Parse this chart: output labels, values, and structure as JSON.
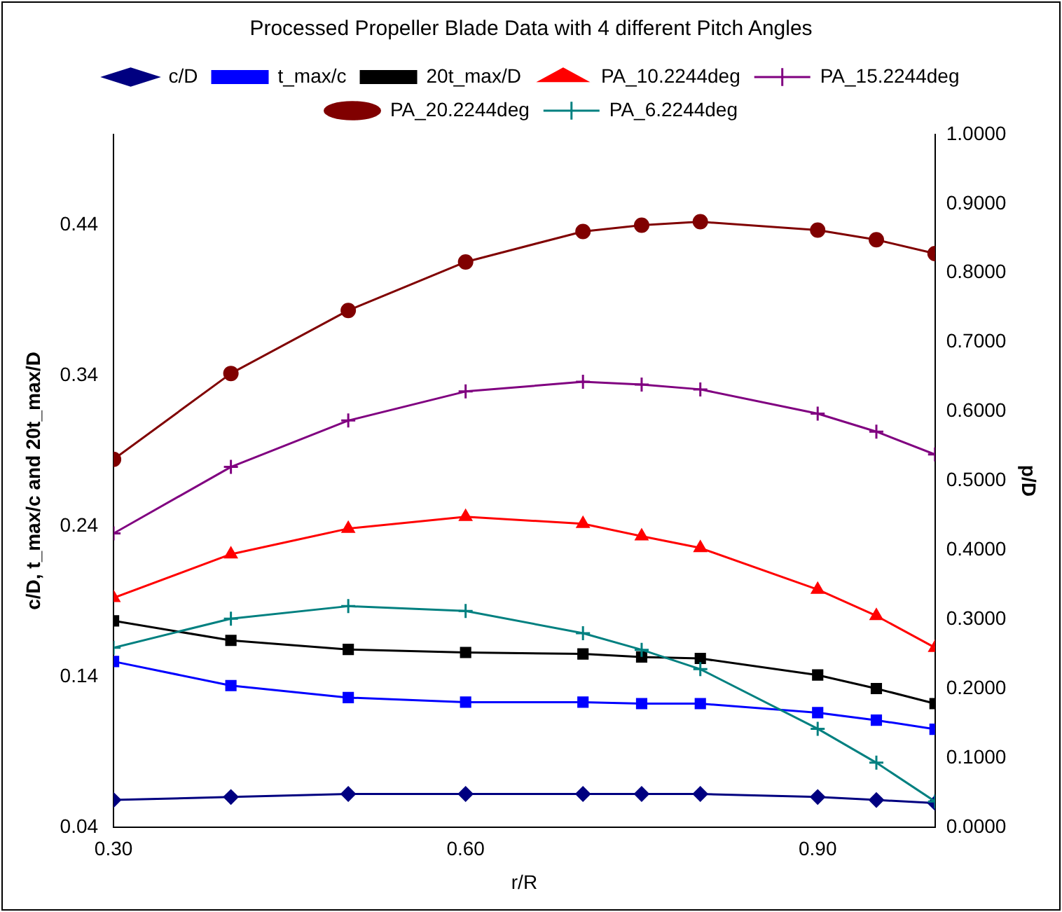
{
  "chart_data": {
    "type": "line",
    "title": "Processed Propeller Blade Data with 4 different Pitch Angles",
    "xlabel": "r/R",
    "ylabel": "c/D, t_max/c and 20t_max/D",
    "y2label": "p/D",
    "x": [
      0.3,
      0.4,
      0.5,
      0.6,
      0.7,
      0.75,
      0.8,
      0.9,
      0.95,
      1.0
    ],
    "series": [
      {
        "name": "c/D",
        "color": "#000080",
        "marker": "diamond",
        "values": [
          0.058,
          0.06,
          0.062,
          0.062,
          0.062,
          0.062,
          0.062,
          0.06,
          0.058,
          0.056
        ]
      },
      {
        "name": "t_max/c",
        "color": "#0000ff",
        "marker": "square",
        "values": [
          0.15,
          0.134,
          0.126,
          0.123,
          0.123,
          0.122,
          0.122,
          0.116,
          0.111,
          0.105
        ]
      },
      {
        "name": "20t_max/D",
        "color": "#000000",
        "marker": "square",
        "values": [
          0.177,
          0.164,
          0.158,
          0.156,
          0.155,
          0.153,
          0.152,
          0.141,
          0.132,
          0.122
        ]
      },
      {
        "name": "PA_10.2244deg",
        "color": "#ff0000",
        "marker": "triangle",
        "axis": "y2",
        "values": [
          0.331,
          0.394,
          0.431,
          0.448,
          0.438,
          0.42,
          0.403,
          0.343,
          0.305,
          0.259
        ]
      },
      {
        "name": "PA_15.2244deg",
        "color": "#800080",
        "marker": "cross",
        "axis": "y2",
        "values": [
          0.424,
          0.52,
          0.587,
          0.629,
          0.643,
          0.639,
          0.632,
          0.597,
          0.571,
          0.538
        ]
      },
      {
        "name": "PA_20.2244deg",
        "color": "#800000",
        "marker": "circle",
        "axis": "y2",
        "values": [
          0.531,
          0.655,
          0.746,
          0.816,
          0.86,
          0.869,
          0.874,
          0.862,
          0.848,
          0.828
        ]
      },
      {
        "name": "PA_6.2244deg",
        "color": "#008080",
        "marker": "cross",
        "axis": "y2",
        "values": [
          0.259,
          0.301,
          0.319,
          0.312,
          0.28,
          0.256,
          0.228,
          0.142,
          0.093,
          0.037
        ]
      }
    ],
    "xlim": [
      0.3,
      1.0
    ],
    "xticks": [
      {
        "value": 0.3,
        "label": "0.30"
      },
      {
        "value": 0.6,
        "label": "0.60"
      },
      {
        "value": 0.9,
        "label": "0.90"
      }
    ],
    "ylim": [
      0.04,
      0.5
    ],
    "yticks": [
      0.04,
      0.14,
      0.24,
      0.34,
      0.44
    ],
    "y2lim": [
      0,
      1
    ],
    "y2ticks": [
      {
        "value": 0,
        "label": "0.0000"
      },
      {
        "value": 0.1,
        "label": "0.1000"
      },
      {
        "value": 0.2,
        "label": "0.2000"
      },
      {
        "value": 0.3,
        "label": "0.3000"
      },
      {
        "value": 0.4,
        "label": "0.4000"
      },
      {
        "value": 0.5,
        "label": "0.5000"
      },
      {
        "value": 0.6,
        "label": "0.6000"
      },
      {
        "value": 0.7,
        "label": "0.7000"
      },
      {
        "value": 0.8,
        "label": "0.8000"
      },
      {
        "value": 0.9,
        "label": "0.9000"
      },
      {
        "value": 1,
        "label": "1.0000"
      }
    ],
    "grid": false,
    "legend": "top",
    "line_style": "solid"
  }
}
